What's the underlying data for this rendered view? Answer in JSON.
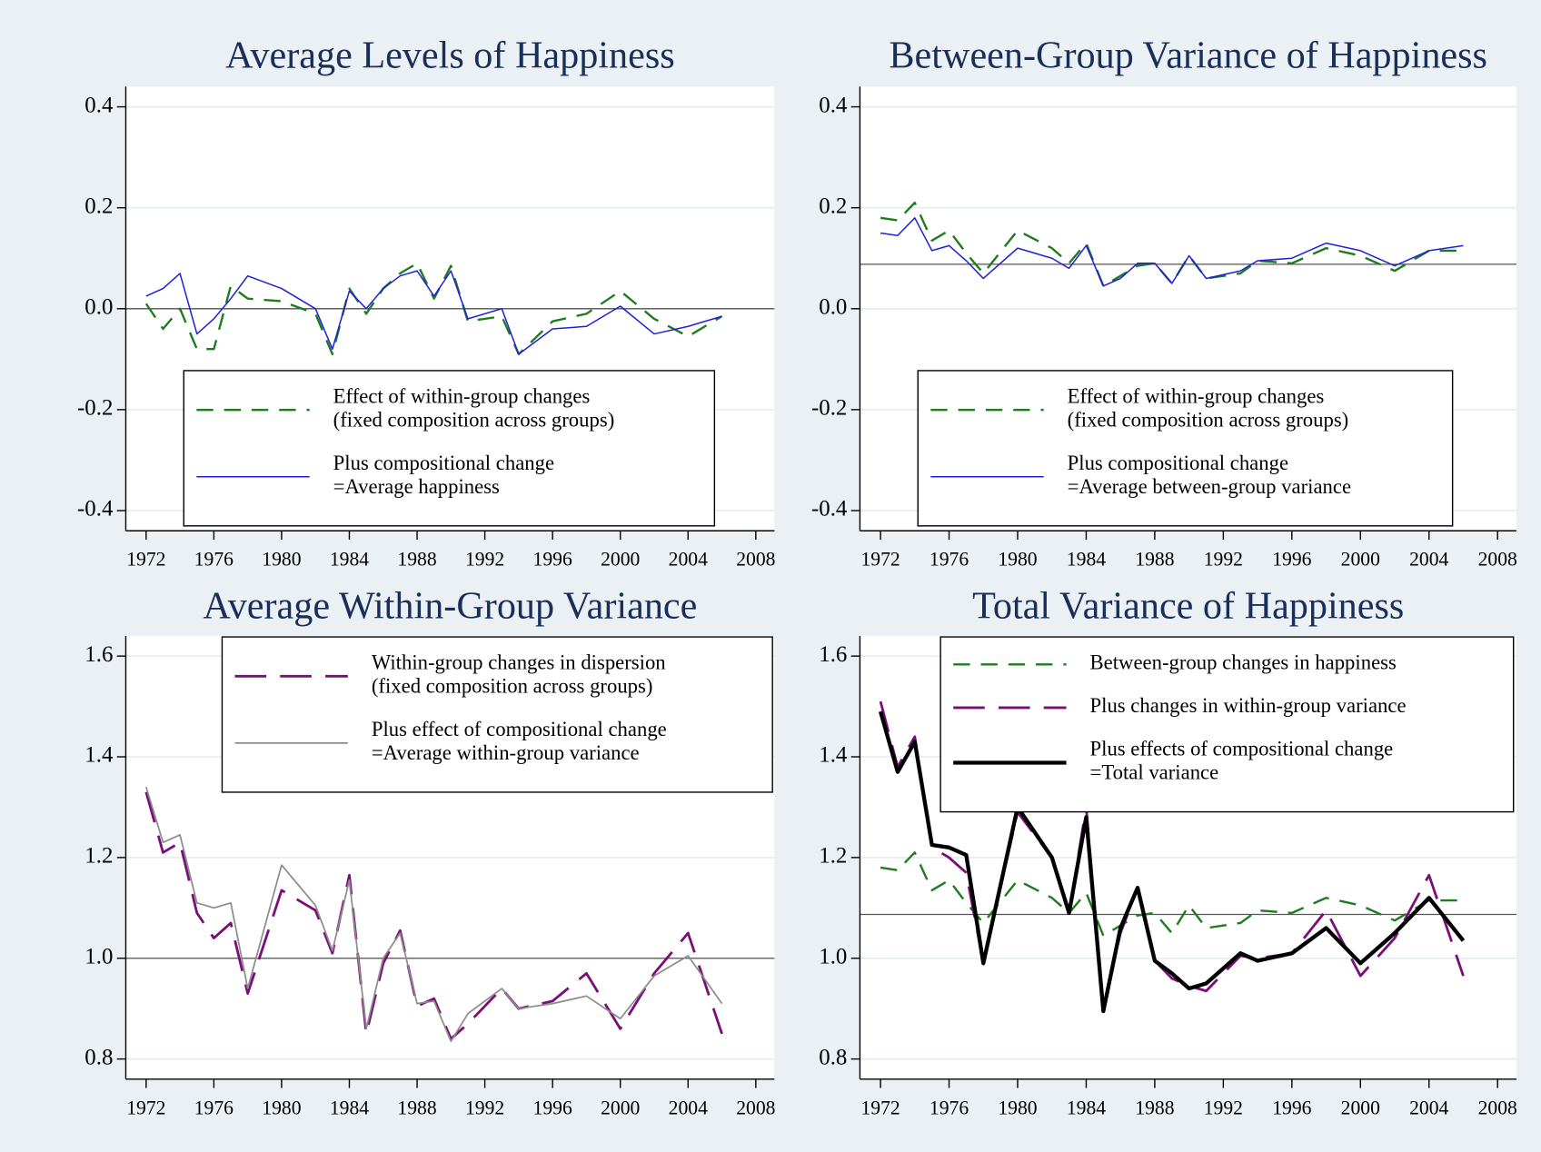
{
  "chart_data": [
    {
      "type": "line",
      "title": "Average Levels of Happiness",
      "x": [
        1972,
        1973,
        1974,
        1975,
        1976,
        1977,
        1978,
        1980,
        1982,
        1983,
        1984,
        1985,
        1986,
        1987,
        1988,
        1989,
        1990,
        1991,
        1993,
        1994,
        1996,
        1998,
        2000,
        2002,
        2004,
        2006
      ],
      "series": [
        {
          "name": [
            "Effect of within-group changes",
            "(fixed composition across groups)"
          ],
          "color": "#1e7b1e",
          "dash": "dashed",
          "width": 2.2,
          "values": [
            0.01,
            -0.04,
            0.0,
            -0.08,
            -0.08,
            0.045,
            0.02,
            0.015,
            -0.01,
            -0.09,
            0.04,
            -0.01,
            0.04,
            0.07,
            0.09,
            0.02,
            0.085,
            -0.025,
            -0.015,
            -0.09,
            -0.025,
            -0.01,
            0.035,
            -0.02,
            -0.055,
            -0.015
          ]
        },
        {
          "name": [
            "Plus compositional change",
            "=Average happiness"
          ],
          "color": "#2020d8",
          "dash": "solid",
          "width": 1.4,
          "values": [
            0.025,
            0.04,
            0.07,
            -0.05,
            -0.02,
            0.02,
            0.065,
            0.04,
            0.0,
            -0.08,
            0.035,
            0.0,
            0.04,
            0.065,
            0.075,
            0.025,
            0.075,
            -0.02,
            0.0,
            -0.09,
            -0.04,
            -0.035,
            0.005,
            -0.05,
            -0.035,
            -0.015
          ]
        }
      ],
      "hline": 0,
      "xlim": [
        1970.8,
        2009.1
      ],
      "xticks": [
        1972,
        1976,
        1980,
        1984,
        1988,
        1992,
        1996,
        2000,
        2004,
        2008
      ],
      "ylim": [
        -0.44,
        0.44
      ],
      "yticks": [
        -0.4,
        -0.2,
        {
          "value": 0,
          "label": "0.0"
        },
        0.2,
        0.4
      ],
      "grid": true,
      "legend_position": "bottom"
    },
    {
      "type": "line",
      "title": "Between-Group Variance of Happiness",
      "x": [
        1972,
        1973,
        1974,
        1975,
        1976,
        1977,
        1978,
        1980,
        1982,
        1983,
        1984,
        1985,
        1986,
        1987,
        1988,
        1989,
        1990,
        1991,
        1993,
        1994,
        1996,
        1998,
        2000,
        2002,
        2004,
        2006
      ],
      "series": [
        {
          "name": [
            "Effect of within-group changes",
            "(fixed composition across groups)"
          ],
          "color": "#1e7b1e",
          "dash": "dashed",
          "width": 2.2,
          "values": [
            0.18,
            0.175,
            0.21,
            0.135,
            0.155,
            0.11,
            0.07,
            0.155,
            0.12,
            0.09,
            0.13,
            0.045,
            0.065,
            0.085,
            0.09,
            0.05,
            0.105,
            0.06,
            0.07,
            0.095,
            0.09,
            0.12,
            0.105,
            0.075,
            0.115,
            0.115
          ]
        },
        {
          "name": [
            "Plus compositional change",
            "=Average between-group variance"
          ],
          "color": "#2020d8",
          "dash": "solid",
          "width": 1.4,
          "values": [
            0.15,
            0.145,
            0.18,
            0.115,
            0.125,
            0.095,
            0.06,
            0.12,
            0.1,
            0.08,
            0.125,
            0.045,
            0.06,
            0.09,
            0.09,
            0.05,
            0.105,
            0.06,
            0.075,
            0.095,
            0.1,
            0.13,
            0.115,
            0.085,
            0.115,
            0.125
          ]
        }
      ],
      "hline": 0.088,
      "xlim": [
        1970.8,
        2009.1
      ],
      "xticks": [
        1972,
        1976,
        1980,
        1984,
        1988,
        1992,
        1996,
        2000,
        2004,
        2008
      ],
      "ylim": [
        -0.44,
        0.44
      ],
      "yticks": [
        -0.4,
        -0.2,
        {
          "value": 0,
          "label": "0.0"
        },
        0.2,
        0.4
      ],
      "grid": true,
      "legend_position": "bottom"
    },
    {
      "type": "line",
      "title": "Average Within-Group Variance",
      "x": [
        1972,
        1973,
        1974,
        1975,
        1976,
        1977,
        1978,
        1980,
        1982,
        1983,
        1984,
        1985,
        1986,
        1987,
        1988,
        1989,
        1990,
        1991,
        1993,
        1994,
        1996,
        1998,
        2000,
        2002,
        2004,
        2006
      ],
      "series": [
        {
          "name": [
            "Within-group changes in dispersion",
            "(fixed composition across groups)"
          ],
          "color": "#7a0f7a",
          "dash": "longdash",
          "width": 2.6,
          "values": [
            1.33,
            1.21,
            1.23,
            1.09,
            1.04,
            1.07,
            0.93,
            1.135,
            1.095,
            1.01,
            1.165,
            0.85,
            0.99,
            1.055,
            0.905,
            0.92,
            0.84,
            0.87,
            0.94,
            0.9,
            0.915,
            0.97,
            0.86,
            0.97,
            1.05,
            0.85
          ]
        },
        {
          "name": [
            "Plus effect of compositional change",
            "=Average within-group variance"
          ],
          "color": "#8c8c8c",
          "dash": "solid",
          "width": 1.6,
          "values": [
            1.34,
            1.23,
            1.245,
            1.11,
            1.1,
            1.11,
            0.94,
            1.185,
            1.105,
            1.015,
            1.155,
            0.86,
            1.0,
            1.05,
            0.91,
            0.915,
            0.835,
            0.89,
            0.94,
            0.9,
            0.91,
            0.925,
            0.88,
            0.965,
            1.005,
            0.91
          ]
        }
      ],
      "hline": 1,
      "xlim": [
        1970.8,
        2009.1
      ],
      "xticks": [
        1972,
        1976,
        1980,
        1984,
        1988,
        1992,
        1996,
        2000,
        2004,
        2008
      ],
      "ylim": [
        0.76,
        1.64
      ],
      "yticks": [
        0.8,
        {
          "value": 1,
          "label": "1.0"
        },
        1.2,
        1.4,
        1.6
      ],
      "grid": true,
      "legend_position": "top-right"
    },
    {
      "type": "line",
      "title": "Total Variance of Happiness",
      "x": [
        1972,
        1973,
        1974,
        1975,
        1976,
        1977,
        1978,
        1980,
        1982,
        1983,
        1984,
        1985,
        1986,
        1987,
        1988,
        1989,
        1990,
        1991,
        1993,
        1994,
        1996,
        1998,
        2000,
        2002,
        2004,
        2006
      ],
      "series": [
        {
          "name": [
            "Between-group changes in happiness"
          ],
          "color": "#1e7b1e",
          "dash": "dashed",
          "width": 2.2,
          "values": [
            1.18,
            1.175,
            1.21,
            1.135,
            1.155,
            1.11,
            1.07,
            1.155,
            1.12,
            1.09,
            1.13,
            1.045,
            1.065,
            1.085,
            1.09,
            1.05,
            1.105,
            1.06,
            1.07,
            1.095,
            1.09,
            1.12,
            1.105,
            1.075,
            1.115,
            1.115
          ]
        },
        {
          "name": [
            "Plus changes in within-group variance"
          ],
          "color": "#7a0f7a",
          "dash": "longdash",
          "width": 2.6,
          "values": [
            1.51,
            1.38,
            1.44,
            1.22,
            1.2,
            1.17,
            0.99,
            1.29,
            1.2,
            1.09,
            1.3,
            0.9,
            1.05,
            1.14,
            0.995,
            0.96,
            0.945,
            0.935,
            1.005,
            1.0,
            1.01,
            1.095,
            0.965,
            1.04,
            1.165,
            0.965
          ]
        },
        {
          "name": [
            "Plus effects of compositional change",
            "=Total variance"
          ],
          "color": "#000000",
          "dash": "solid",
          "width": 4,
          "values": [
            1.49,
            1.37,
            1.43,
            1.225,
            1.22,
            1.205,
            0.99,
            1.3,
            1.2,
            1.09,
            1.28,
            0.895,
            1.06,
            1.14,
            0.995,
            0.97,
            0.94,
            0.95,
            1.01,
            0.995,
            1.01,
            1.06,
            0.99,
            1.05,
            1.12,
            1.035
          ]
        }
      ],
      "hline": 1.087,
      "xlim": [
        1970.8,
        2009.1
      ],
      "xticks": [
        1972,
        1976,
        1980,
        1984,
        1988,
        1992,
        1996,
        2000,
        2004,
        2008
      ],
      "ylim": [
        0.76,
        1.64
      ],
      "yticks": [
        0.8,
        {
          "value": 1,
          "label": "1.0"
        },
        1.2,
        1.4,
        1.6
      ],
      "grid": true,
      "legend_position": "top-right"
    }
  ]
}
